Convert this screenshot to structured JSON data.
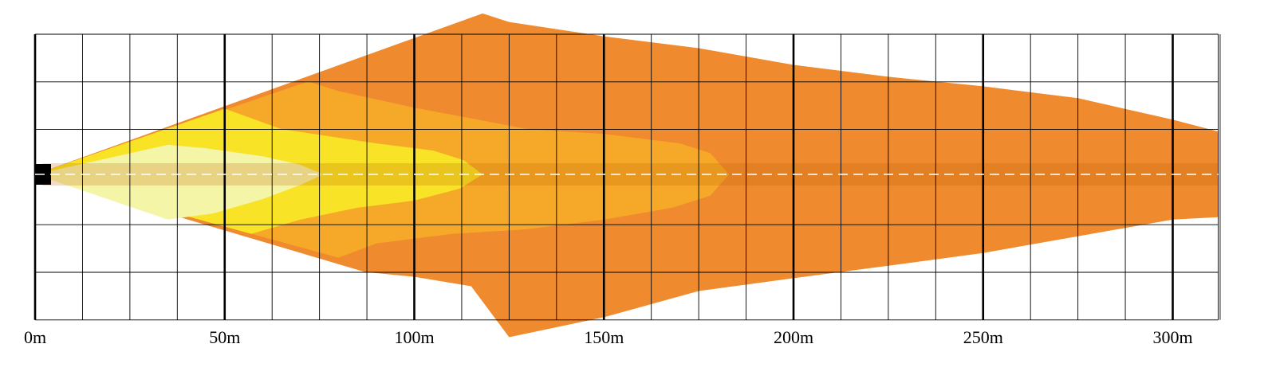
{
  "chart_data": {
    "type": "beam-pattern",
    "x_unit": "m",
    "xlim": [
      0,
      312
    ],
    "major_tick_step": 50,
    "minor_tick_step": 12.5,
    "tick_labels": [
      "0m",
      "50m",
      "100m",
      "150m",
      "200m",
      "250m",
      "300m"
    ],
    "center_dashed_line": true,
    "zones": [
      {
        "id": "outer",
        "color": "#ef8b2e",
        "approx_reach_m": 312,
        "top": [
          [
            0,
            0
          ],
          [
            118,
            -3.38
          ],
          [
            125,
            -3.2
          ],
          [
            150,
            -2.9
          ],
          [
            175,
            -2.65
          ],
          [
            200,
            -2.3
          ],
          [
            225,
            -2.05
          ],
          [
            250,
            -1.85
          ],
          [
            275,
            -1.6
          ],
          [
            300,
            -1.15
          ],
          [
            312,
            -0.9
          ]
        ],
        "bottom": [
          [
            0,
            0
          ],
          [
            87,
            2.05
          ],
          [
            100,
            2.15
          ],
          [
            115,
            2.35
          ],
          [
            125,
            3.42
          ],
          [
            150,
            3.0
          ],
          [
            175,
            2.45
          ],
          [
            200,
            2.18
          ],
          [
            225,
            1.92
          ],
          [
            250,
            1.65
          ],
          [
            275,
            1.3
          ],
          [
            300,
            0.95
          ],
          [
            312,
            0.9
          ]
        ]
      },
      {
        "id": "mid",
        "color": "#f6a928",
        "approx_reach_m": 183,
        "top": [
          [
            0,
            0
          ],
          [
            72,
            -1.95
          ],
          [
            80,
            -1.75
          ],
          [
            100,
            -1.4
          ],
          [
            130,
            -0.95
          ],
          [
            150,
            -0.85
          ],
          [
            170,
            -0.65
          ],
          [
            178,
            -0.45
          ],
          [
            183,
            0
          ]
        ],
        "bottom": [
          [
            183,
            0
          ],
          [
            178,
            0.45
          ],
          [
            168,
            0.7
          ],
          [
            150,
            0.95
          ],
          [
            130,
            1.15
          ],
          [
            110,
            1.25
          ],
          [
            90,
            1.45
          ],
          [
            80,
            1.75
          ],
          [
            0,
            0
          ]
        ]
      },
      {
        "id": "inner",
        "color": "#f8e326",
        "approx_reach_m": 118,
        "top": [
          [
            0,
            0
          ],
          [
            50,
            -1.38
          ],
          [
            65,
            -0.95
          ],
          [
            90,
            -0.65
          ],
          [
            105,
            -0.5
          ],
          [
            113,
            -0.3
          ],
          [
            118,
            0
          ]
        ],
        "bottom": [
          [
            118,
            0
          ],
          [
            112,
            0.3
          ],
          [
            100,
            0.55
          ],
          [
            85,
            0.7
          ],
          [
            70,
            0.95
          ],
          [
            57,
            1.25
          ],
          [
            0,
            0
          ]
        ]
      },
      {
        "id": "core",
        "color": "#f5f5a8",
        "approx_reach_m": 76,
        "top": [
          [
            0,
            0
          ],
          [
            35,
            -0.62
          ],
          [
            45,
            -0.55
          ],
          [
            60,
            -0.38
          ],
          [
            70,
            -0.2
          ],
          [
            76,
            0
          ]
        ],
        "bottom": [
          [
            76,
            0
          ],
          [
            70,
            0.22
          ],
          [
            60,
            0.52
          ],
          [
            47,
            0.82
          ],
          [
            35,
            0.95
          ],
          [
            0,
            0
          ]
        ]
      }
    ]
  }
}
